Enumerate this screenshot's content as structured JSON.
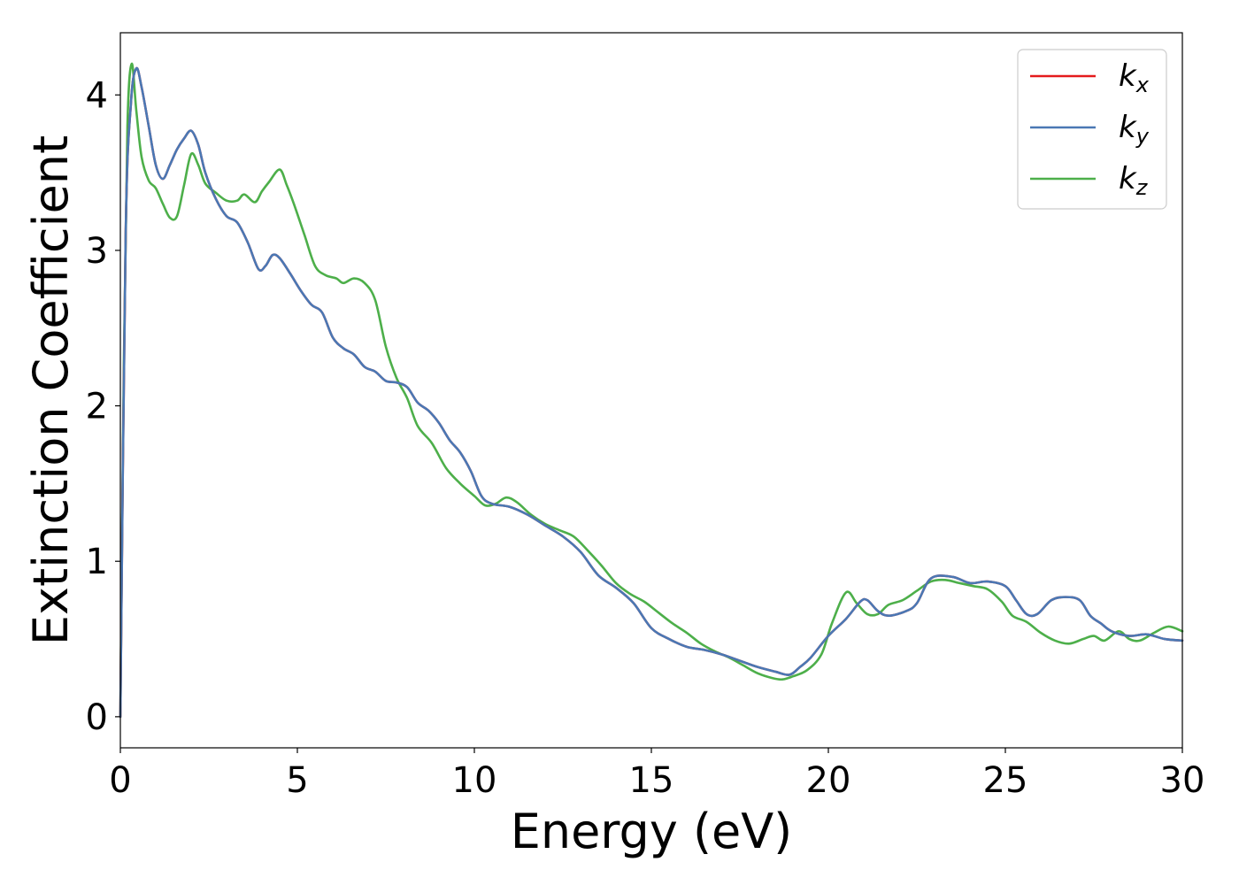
{
  "chart_data": {
    "type": "line",
    "title": "",
    "xlabel": "Energy (eV)",
    "ylabel": "Extinction Coefficient",
    "xlim": [
      0,
      30
    ],
    "ylim": [
      -0.2,
      4.4
    ],
    "x_ticks": [
      {
        "value": 0,
        "label": "0"
      },
      {
        "value": 5,
        "label": "5"
      },
      {
        "value": 10,
        "label": "10"
      },
      {
        "value": 15,
        "label": "15"
      },
      {
        "value": 20,
        "label": "20"
      },
      {
        "value": 25,
        "label": "25"
      },
      {
        "value": 30,
        "label": "30"
      }
    ],
    "y_ticks": [
      {
        "value": 0,
        "label": "0"
      },
      {
        "value": 1,
        "label": "1"
      },
      {
        "value": 2,
        "label": "2"
      },
      {
        "value": 3,
        "label": "3"
      },
      {
        "value": 4,
        "label": "4"
      }
    ],
    "grid": false,
    "legend_position": "top-right",
    "series": [
      {
        "name": "k_x",
        "legend_base": "k",
        "legend_sub": "x",
        "color": "#e41a1c",
        "points": [
          [
            0,
            0.0
          ],
          [
            0.15,
            3.1
          ],
          [
            0.3,
            3.95
          ],
          [
            0.45,
            4.17
          ],
          [
            0.6,
            4.05
          ],
          [
            0.8,
            3.8
          ],
          [
            1.0,
            3.55
          ],
          [
            1.2,
            3.46
          ],
          [
            1.4,
            3.55
          ],
          [
            1.6,
            3.65
          ],
          [
            1.8,
            3.72
          ],
          [
            2.0,
            3.77
          ],
          [
            2.2,
            3.68
          ],
          [
            2.4,
            3.5
          ],
          [
            2.7,
            3.33
          ],
          [
            3.0,
            3.22
          ],
          [
            3.3,
            3.18
          ],
          [
            3.6,
            3.05
          ],
          [
            3.9,
            2.88
          ],
          [
            4.1,
            2.9
          ],
          [
            4.3,
            2.97
          ],
          [
            4.5,
            2.95
          ],
          [
            4.8,
            2.85
          ],
          [
            5.1,
            2.74
          ],
          [
            5.4,
            2.65
          ],
          [
            5.7,
            2.6
          ],
          [
            6.0,
            2.44
          ],
          [
            6.3,
            2.37
          ],
          [
            6.6,
            2.33
          ],
          [
            6.9,
            2.25
          ],
          [
            7.2,
            2.22
          ],
          [
            7.5,
            2.16
          ],
          [
            7.8,
            2.15
          ],
          [
            8.1,
            2.12
          ],
          [
            8.4,
            2.02
          ],
          [
            8.7,
            1.97
          ],
          [
            9.0,
            1.89
          ],
          [
            9.3,
            1.78
          ],
          [
            9.6,
            1.7
          ],
          [
            9.9,
            1.58
          ],
          [
            10.2,
            1.42
          ],
          [
            10.5,
            1.37
          ],
          [
            11.0,
            1.35
          ],
          [
            11.5,
            1.3
          ],
          [
            12.0,
            1.23
          ],
          [
            12.5,
            1.16
          ],
          [
            13.0,
            1.06
          ],
          [
            13.5,
            0.91
          ],
          [
            14.0,
            0.83
          ],
          [
            14.5,
            0.73
          ],
          [
            15.0,
            0.57
          ],
          [
            15.5,
            0.5
          ],
          [
            16.0,
            0.45
          ],
          [
            16.5,
            0.43
          ],
          [
            17.0,
            0.4
          ],
          [
            17.5,
            0.36
          ],
          [
            18.0,
            0.32
          ],
          [
            18.5,
            0.29
          ],
          [
            18.9,
            0.27
          ],
          [
            19.2,
            0.32
          ],
          [
            19.5,
            0.38
          ],
          [
            20.0,
            0.52
          ],
          [
            20.5,
            0.63
          ],
          [
            20.9,
            0.74
          ],
          [
            21.1,
            0.75
          ],
          [
            21.4,
            0.68
          ],
          [
            21.7,
            0.65
          ],
          [
            22.2,
            0.68
          ],
          [
            22.5,
            0.73
          ],
          [
            22.9,
            0.89
          ],
          [
            23.5,
            0.9
          ],
          [
            24.0,
            0.86
          ],
          [
            24.5,
            0.87
          ],
          [
            25.0,
            0.84
          ],
          [
            25.3,
            0.75
          ],
          [
            25.6,
            0.66
          ],
          [
            25.9,
            0.66
          ],
          [
            26.3,
            0.75
          ],
          [
            26.7,
            0.77
          ],
          [
            27.1,
            0.75
          ],
          [
            27.4,
            0.65
          ],
          [
            27.7,
            0.6
          ],
          [
            28.0,
            0.55
          ],
          [
            28.5,
            0.52
          ],
          [
            29.0,
            0.53
          ],
          [
            29.5,
            0.5
          ],
          [
            30.0,
            0.49
          ]
        ]
      },
      {
        "name": "k_y",
        "legend_base": "k",
        "legend_sub": "y",
        "color": "#4a78b4",
        "points": [
          [
            0,
            0.0
          ],
          [
            0.15,
            3.1
          ],
          [
            0.3,
            3.95
          ],
          [
            0.45,
            4.17
          ],
          [
            0.6,
            4.05
          ],
          [
            0.8,
            3.8
          ],
          [
            1.0,
            3.55
          ],
          [
            1.2,
            3.46
          ],
          [
            1.4,
            3.55
          ],
          [
            1.6,
            3.65
          ],
          [
            1.8,
            3.72
          ],
          [
            2.0,
            3.77
          ],
          [
            2.2,
            3.68
          ],
          [
            2.4,
            3.5
          ],
          [
            2.7,
            3.33
          ],
          [
            3.0,
            3.22
          ],
          [
            3.3,
            3.18
          ],
          [
            3.6,
            3.05
          ],
          [
            3.9,
            2.88
          ],
          [
            4.1,
            2.9
          ],
          [
            4.3,
            2.97
          ],
          [
            4.5,
            2.95
          ],
          [
            4.8,
            2.85
          ],
          [
            5.1,
            2.74
          ],
          [
            5.4,
            2.65
          ],
          [
            5.7,
            2.6
          ],
          [
            6.0,
            2.44
          ],
          [
            6.3,
            2.37
          ],
          [
            6.6,
            2.33
          ],
          [
            6.9,
            2.25
          ],
          [
            7.2,
            2.22
          ],
          [
            7.5,
            2.16
          ],
          [
            7.8,
            2.15
          ],
          [
            8.1,
            2.12
          ],
          [
            8.4,
            2.02
          ],
          [
            8.7,
            1.97
          ],
          [
            9.0,
            1.89
          ],
          [
            9.3,
            1.78
          ],
          [
            9.6,
            1.7
          ],
          [
            9.9,
            1.58
          ],
          [
            10.2,
            1.42
          ],
          [
            10.5,
            1.37
          ],
          [
            11.0,
            1.35
          ],
          [
            11.5,
            1.3
          ],
          [
            12.0,
            1.23
          ],
          [
            12.5,
            1.16
          ],
          [
            13.0,
            1.06
          ],
          [
            13.5,
            0.91
          ],
          [
            14.0,
            0.83
          ],
          [
            14.5,
            0.73
          ],
          [
            15.0,
            0.57
          ],
          [
            15.5,
            0.5
          ],
          [
            16.0,
            0.45
          ],
          [
            16.5,
            0.43
          ],
          [
            17.0,
            0.4
          ],
          [
            17.5,
            0.36
          ],
          [
            18.0,
            0.32
          ],
          [
            18.5,
            0.29
          ],
          [
            18.9,
            0.27
          ],
          [
            19.2,
            0.32
          ],
          [
            19.5,
            0.38
          ],
          [
            20.0,
            0.52
          ],
          [
            20.5,
            0.63
          ],
          [
            20.9,
            0.74
          ],
          [
            21.1,
            0.75
          ],
          [
            21.4,
            0.68
          ],
          [
            21.7,
            0.65
          ],
          [
            22.2,
            0.68
          ],
          [
            22.5,
            0.73
          ],
          [
            22.9,
            0.89
          ],
          [
            23.5,
            0.9
          ],
          [
            24.0,
            0.86
          ],
          [
            24.5,
            0.87
          ],
          [
            25.0,
            0.84
          ],
          [
            25.3,
            0.75
          ],
          [
            25.6,
            0.66
          ],
          [
            25.9,
            0.66
          ],
          [
            26.3,
            0.75
          ],
          [
            26.7,
            0.77
          ],
          [
            27.1,
            0.75
          ],
          [
            27.4,
            0.65
          ],
          [
            27.7,
            0.6
          ],
          [
            28.0,
            0.55
          ],
          [
            28.5,
            0.52
          ],
          [
            29.0,
            0.53
          ],
          [
            29.5,
            0.5
          ],
          [
            30.0,
            0.49
          ]
        ]
      },
      {
        "name": "k_z",
        "legend_base": "k",
        "legend_sub": "z",
        "color": "#4daf4a",
        "points": [
          [
            0,
            0.0
          ],
          [
            0.1,
            2.3
          ],
          [
            0.2,
            3.8
          ],
          [
            0.32,
            4.2
          ],
          [
            0.45,
            3.9
          ],
          [
            0.6,
            3.6
          ],
          [
            0.8,
            3.45
          ],
          [
            1.0,
            3.4
          ],
          [
            1.2,
            3.3
          ],
          [
            1.4,
            3.21
          ],
          [
            1.6,
            3.22
          ],
          [
            1.8,
            3.42
          ],
          [
            2.0,
            3.62
          ],
          [
            2.2,
            3.55
          ],
          [
            2.4,
            3.43
          ],
          [
            2.7,
            3.37
          ],
          [
            3.0,
            3.32
          ],
          [
            3.3,
            3.32
          ],
          [
            3.5,
            3.36
          ],
          [
            3.8,
            3.31
          ],
          [
            4.0,
            3.38
          ],
          [
            4.2,
            3.44
          ],
          [
            4.5,
            3.52
          ],
          [
            4.7,
            3.42
          ],
          [
            4.9,
            3.3
          ],
          [
            5.2,
            3.1
          ],
          [
            5.5,
            2.9
          ],
          [
            5.8,
            2.84
          ],
          [
            6.1,
            2.82
          ],
          [
            6.3,
            2.79
          ],
          [
            6.6,
            2.82
          ],
          [
            6.9,
            2.79
          ],
          [
            7.2,
            2.68
          ],
          [
            7.5,
            2.38
          ],
          [
            7.8,
            2.18
          ],
          [
            8.1,
            2.05
          ],
          [
            8.4,
            1.87
          ],
          [
            8.8,
            1.76
          ],
          [
            9.2,
            1.6
          ],
          [
            9.6,
            1.5
          ],
          [
            10.0,
            1.42
          ],
          [
            10.3,
            1.36
          ],
          [
            10.6,
            1.37
          ],
          [
            10.9,
            1.41
          ],
          [
            11.2,
            1.38
          ],
          [
            11.6,
            1.3
          ],
          [
            12.0,
            1.24
          ],
          [
            12.4,
            1.2
          ],
          [
            12.8,
            1.16
          ],
          [
            13.2,
            1.07
          ],
          [
            13.6,
            0.97
          ],
          [
            14.0,
            0.86
          ],
          [
            14.4,
            0.79
          ],
          [
            14.8,
            0.74
          ],
          [
            15.2,
            0.67
          ],
          [
            15.6,
            0.6
          ],
          [
            16.0,
            0.54
          ],
          [
            16.4,
            0.47
          ],
          [
            16.8,
            0.42
          ],
          [
            17.2,
            0.38
          ],
          [
            17.6,
            0.33
          ],
          [
            18.0,
            0.28
          ],
          [
            18.4,
            0.25
          ],
          [
            18.7,
            0.24
          ],
          [
            19.0,
            0.26
          ],
          [
            19.4,
            0.3
          ],
          [
            19.8,
            0.4
          ],
          [
            20.1,
            0.6
          ],
          [
            20.5,
            0.8
          ],
          [
            20.8,
            0.73
          ],
          [
            21.1,
            0.66
          ],
          [
            21.4,
            0.66
          ],
          [
            21.7,
            0.72
          ],
          [
            22.1,
            0.75
          ],
          [
            22.5,
            0.81
          ],
          [
            22.9,
            0.87
          ],
          [
            23.3,
            0.88
          ],
          [
            23.7,
            0.86
          ],
          [
            24.1,
            0.84
          ],
          [
            24.5,
            0.82
          ],
          [
            24.9,
            0.74
          ],
          [
            25.2,
            0.65
          ],
          [
            25.6,
            0.61
          ],
          [
            26.0,
            0.54
          ],
          [
            26.4,
            0.49
          ],
          [
            26.8,
            0.47
          ],
          [
            27.2,
            0.5
          ],
          [
            27.5,
            0.52
          ],
          [
            27.8,
            0.49
          ],
          [
            28.2,
            0.55
          ],
          [
            28.5,
            0.5
          ],
          [
            28.8,
            0.49
          ],
          [
            29.2,
            0.54
          ],
          [
            29.6,
            0.58
          ],
          [
            30.0,
            0.55
          ]
        ]
      }
    ]
  }
}
